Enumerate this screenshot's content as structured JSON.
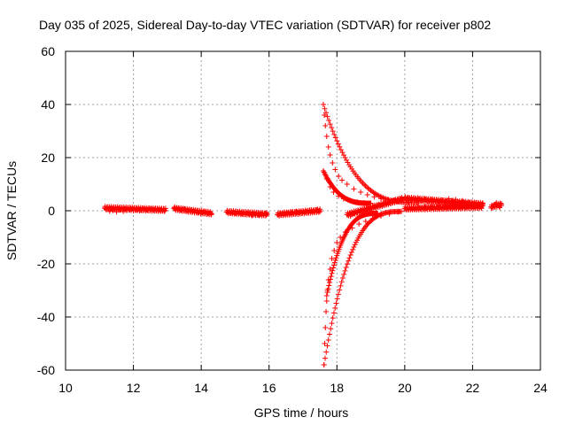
{
  "chart_data": {
    "type": "scatter",
    "title": "Day 035 of 2025, Sidereal Day-to-day VTEC variation (SDTVAR) for receiver p802",
    "xlabel": "GPS time / hours",
    "ylabel": "SDTVAR / TECUs",
    "xlim": [
      10,
      24
    ],
    "ylim": [
      -60,
      60
    ],
    "xticks": [
      10,
      12,
      14,
      16,
      18,
      20,
      22,
      24
    ],
    "yticks": [
      -60,
      -40,
      -20,
      0,
      20,
      40,
      60
    ],
    "xtick_labels": [
      "10",
      "12",
      "14",
      "16",
      "18",
      "20",
      "22",
      "24"
    ],
    "ytick_labels": [
      "-60",
      "-40",
      "-20",
      "0",
      "20",
      "40",
      "60"
    ],
    "grid": true,
    "marker": "+",
    "colors": {
      "series": "#ff0000",
      "grid": "#a0a0a0",
      "axis": "#000000"
    },
    "series": [
      {
        "name": "SDTVAR",
        "points": [
          [
            11.15,
            1.0
          ],
          [
            11.2,
            0.4
          ],
          [
            11.3,
            -0.2
          ],
          [
            11.4,
            0.1
          ],
          [
            11.5,
            -0.4
          ],
          [
            11.6,
            0.3
          ],
          [
            11.7,
            -0.2
          ],
          [
            11.8,
            0.2
          ],
          [
            11.9,
            0.5
          ],
          [
            12.0,
            0.0
          ],
          [
            12.1,
            0.4
          ],
          [
            12.2,
            0.2
          ],
          [
            12.3,
            0.6
          ],
          [
            12.4,
            0.3
          ],
          [
            12.5,
            0.5
          ],
          [
            12.6,
            0.2
          ],
          [
            12.7,
            0.6
          ],
          [
            12.8,
            0.1
          ],
          [
            12.9,
            0.4
          ],
          [
            13.2,
            1.0
          ],
          [
            13.3,
            0.6
          ],
          [
            13.4,
            0.2
          ],
          [
            13.5,
            0.5
          ],
          [
            13.6,
            -0.1
          ],
          [
            13.7,
            0.2
          ],
          [
            13.8,
            -0.3
          ],
          [
            13.9,
            -0.5
          ],
          [
            14.0,
            -0.7
          ],
          [
            14.1,
            -0.6
          ],
          [
            14.2,
            -0.9
          ],
          [
            14.3,
            -1.0
          ],
          [
            14.75,
            -0.5
          ],
          [
            14.9,
            -0.6
          ],
          [
            15.0,
            -0.9
          ],
          [
            15.1,
            -0.8
          ],
          [
            15.2,
            -1.2
          ],
          [
            15.3,
            -1.4
          ],
          [
            15.4,
            -1.3
          ],
          [
            15.5,
            -1.8
          ],
          [
            15.6,
            -1.5
          ],
          [
            15.7,
            -1.7
          ],
          [
            15.8,
            -1.2
          ],
          [
            15.9,
            -1.0
          ],
          [
            16.25,
            -1.6
          ],
          [
            16.35,
            -1.2
          ],
          [
            16.45,
            -0.6
          ],
          [
            16.55,
            -0.9
          ],
          [
            16.65,
            -0.5
          ],
          [
            16.8,
            -0.3
          ],
          [
            16.9,
            -0.6
          ],
          [
            17.0,
            0.0
          ],
          [
            17.1,
            -0.3
          ],
          [
            17.2,
            0.2
          ],
          [
            17.3,
            -0.1
          ],
          [
            17.4,
            0.4
          ],
          [
            17.5,
            -0.3
          ],
          [
            17.6,
            40.0
          ],
          [
            17.63,
            36.0
          ],
          [
            17.66,
            32.0
          ],
          [
            17.7,
            28.0
          ],
          [
            17.75,
            24.0
          ],
          [
            17.8,
            21.0
          ],
          [
            17.87,
            18.0
          ],
          [
            17.95,
            15.5
          ],
          [
            18.05,
            13.0
          ],
          [
            18.15,
            11.5
          ],
          [
            18.3,
            10.0
          ],
          [
            18.5,
            8.2
          ],
          [
            18.7,
            7.0
          ],
          [
            18.9,
            6.0
          ],
          [
            19.1,
            5.2
          ],
          [
            19.3,
            4.6
          ],
          [
            19.5,
            4.1
          ],
          [
            19.8,
            3.6
          ],
          [
            20.1,
            3.3
          ],
          [
            20.4,
            3.0
          ],
          [
            17.6,
            15.0
          ],
          [
            17.7,
            12.0
          ],
          [
            17.8,
            9.0
          ],
          [
            17.9,
            7.0
          ],
          [
            18.05,
            5.5
          ],
          [
            18.2,
            4.5
          ],
          [
            18.4,
            3.8
          ],
          [
            18.6,
            3.3
          ],
          [
            18.8,
            3.0
          ],
          [
            19.0,
            2.8
          ],
          [
            17.62,
            -58.0
          ],
          [
            17.64,
            -50.0
          ],
          [
            17.66,
            -44.0
          ],
          [
            17.68,
            -38.0
          ],
          [
            17.7,
            -34.0
          ],
          [
            17.72,
            -30.0
          ],
          [
            17.75,
            -26.0
          ],
          [
            17.8,
            -22.0
          ],
          [
            17.85,
            -18.0
          ],
          [
            17.92,
            -15.0
          ],
          [
            18.0,
            -12.0
          ],
          [
            18.1,
            -10.0
          ],
          [
            18.25,
            -8.0
          ],
          [
            18.45,
            -6.5
          ],
          [
            18.65,
            -5.0
          ],
          [
            18.85,
            -4.0
          ],
          [
            19.05,
            -3.0
          ],
          [
            19.3,
            -2.0
          ],
          [
            19.55,
            -1.2
          ],
          [
            19.8,
            -0.5
          ],
          [
            18.3,
            -1.5
          ],
          [
            18.4,
            -2.0
          ],
          [
            18.5,
            -1.0
          ],
          [
            18.6,
            -0.8
          ],
          [
            18.8,
            -0.2
          ],
          [
            18.9,
            0.6
          ],
          [
            19.0,
            1.0
          ],
          [
            19.1,
            1.6
          ],
          [
            19.2,
            2.0
          ],
          [
            19.3,
            2.5
          ],
          [
            19.4,
            3.0
          ],
          [
            19.5,
            3.2
          ],
          [
            19.6,
            3.6
          ],
          [
            19.7,
            4.0
          ],
          [
            19.8,
            4.2
          ],
          [
            19.9,
            4.5
          ],
          [
            20.0,
            4.8
          ],
          [
            20.1,
            4.5
          ],
          [
            20.2,
            5.0
          ],
          [
            20.3,
            4.2
          ],
          [
            20.4,
            4.6
          ],
          [
            20.5,
            3.8
          ],
          [
            20.6,
            4.4
          ],
          [
            20.7,
            3.6
          ],
          [
            20.8,
            4.2
          ],
          [
            20.9,
            3.4
          ],
          [
            21.0,
            3.0
          ],
          [
            21.1,
            4.0
          ],
          [
            21.2,
            3.6
          ],
          [
            21.3,
            4.5
          ],
          [
            21.4,
            3.8
          ],
          [
            21.5,
            4.2
          ],
          [
            21.6,
            3.2
          ],
          [
            21.7,
            3.8
          ],
          [
            21.8,
            2.8
          ],
          [
            21.9,
            3.0
          ],
          [
            22.0,
            2.5
          ],
          [
            22.1,
            3.0
          ],
          [
            22.2,
            2.2
          ],
          [
            22.3,
            2.6
          ],
          [
            20.0,
            0.8
          ],
          [
            20.2,
            1.0
          ],
          [
            20.4,
            1.2
          ],
          [
            20.6,
            1.5
          ],
          [
            20.8,
            1.8
          ],
          [
            21.0,
            2.0
          ],
          [
            21.2,
            2.0
          ],
          [
            21.4,
            2.2
          ],
          [
            21.6,
            2.0
          ],
          [
            21.8,
            1.8
          ],
          [
            22.0,
            1.6
          ],
          [
            22.2,
            1.5
          ],
          [
            22.55,
            1.0
          ],
          [
            22.6,
            1.6
          ],
          [
            22.65,
            2.4
          ],
          [
            22.7,
            3.0
          ],
          [
            22.75,
            2.0
          ],
          [
            22.8,
            1.2
          ],
          [
            22.85,
            2.6
          ]
        ],
        "segments": [
          [
            11.15,
            1.0,
            12.95,
            0.3
          ],
          [
            13.2,
            0.8,
            14.3,
            -1.0
          ],
          [
            14.75,
            -0.5,
            15.95,
            -1.4
          ],
          [
            16.25,
            -1.4,
            17.5,
            0.0
          ],
          [
            18.3,
            -1.5,
            19.95,
            4.5
          ],
          [
            20.0,
            4.6,
            22.3,
            2.4
          ],
          [
            20.0,
            0.8,
            22.3,
            1.5
          ],
          [
            22.55,
            1.5,
            22.85,
            2.4
          ]
        ],
        "curves": [
          {
            "x0": 17.6,
            "y0": 40.0,
            "x1": 20.4,
            "y1": 3.0
          },
          {
            "x0": 17.6,
            "y0": 15.0,
            "x1": 19.0,
            "y1": 2.8
          },
          {
            "x0": 17.62,
            "y0": -58.0,
            "x1": 19.9,
            "y1": -0.3
          },
          {
            "x0": 17.7,
            "y0": -32.0,
            "x1": 19.2,
            "y1": -1.0
          }
        ]
      }
    ]
  }
}
